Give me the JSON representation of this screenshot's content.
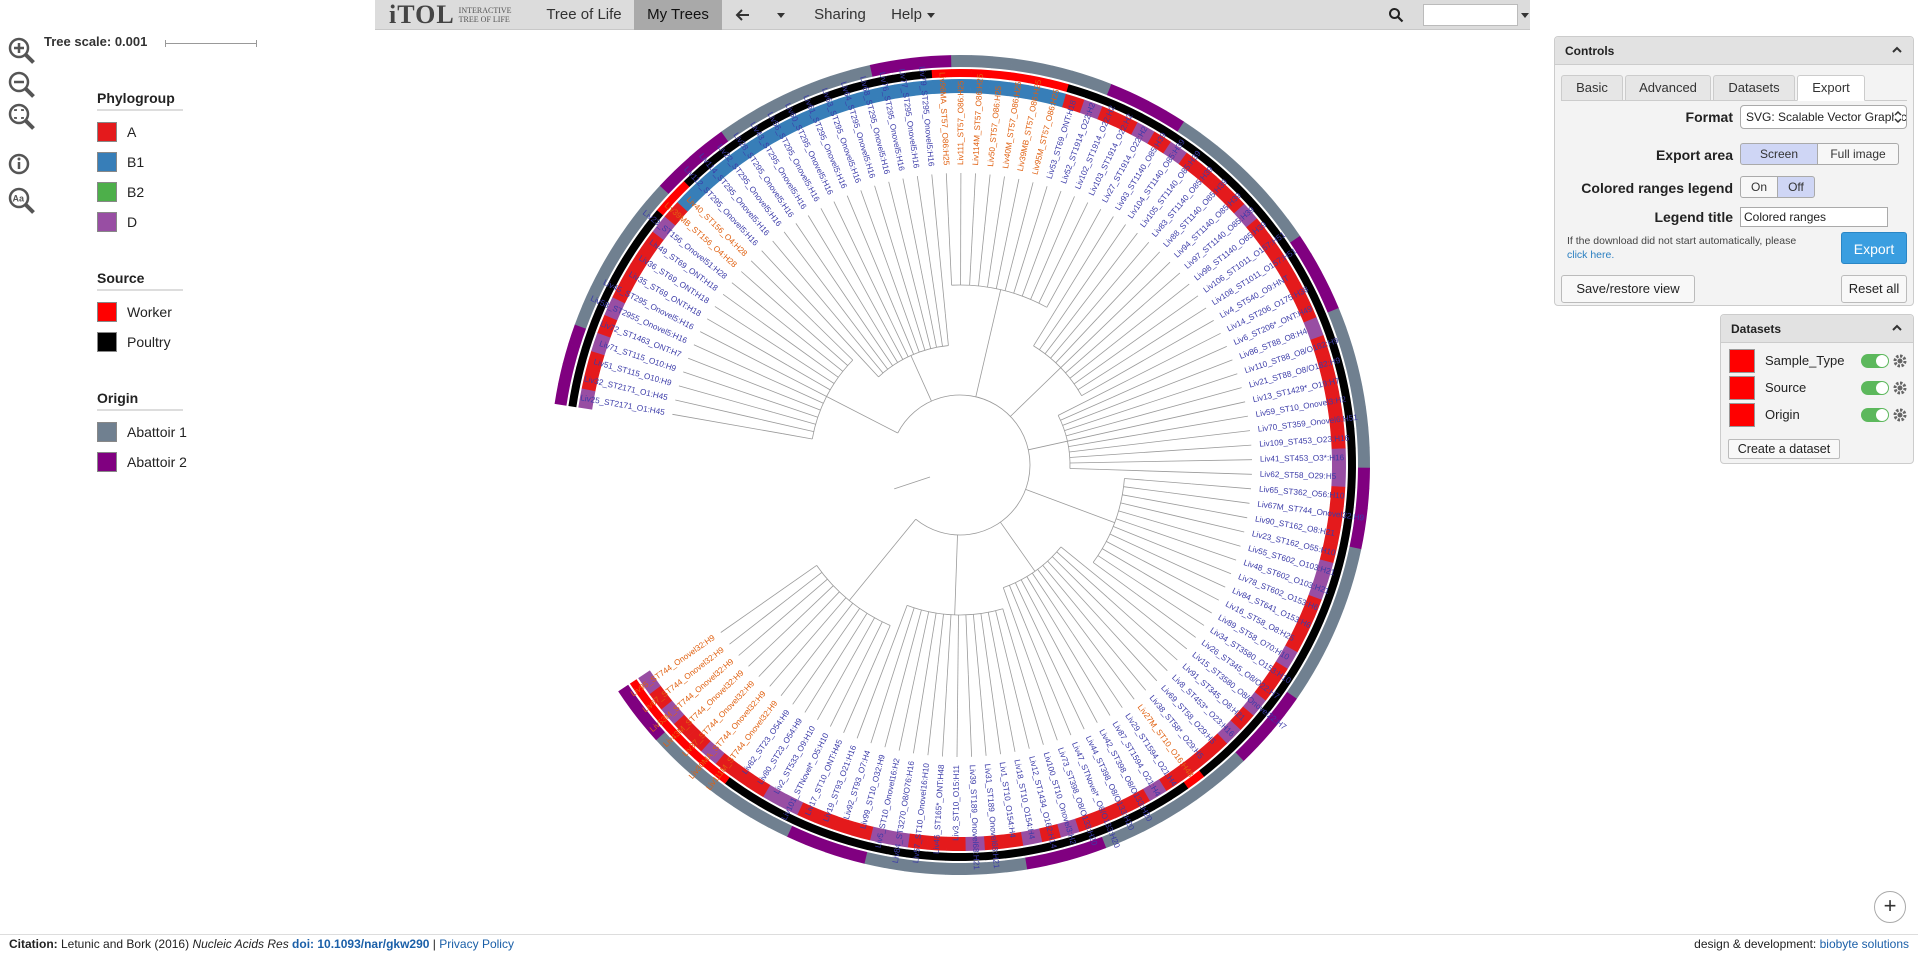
{
  "nav": {
    "logo_main": "iTOL",
    "logo_sub_1": "Interactive",
    "logo_sub_2": "Tree Of Life",
    "tree_of_life": "Tree of Life",
    "my_trees": "My Trees",
    "sharing": "Sharing",
    "help": "Help",
    "icons": [
      "arrow-left-icon",
      "search-icon"
    ]
  },
  "tree_scale": "Tree scale: 0.001",
  "legends": {
    "phylogroup": {
      "title": "Phylogroup",
      "items": [
        {
          "label": "A",
          "color": "#e41a1c"
        },
        {
          "label": "B1",
          "color": "#377eb8"
        },
        {
          "label": "B2",
          "color": "#4daf4a"
        },
        {
          "label": "D",
          "color": "#984ea3"
        }
      ]
    },
    "source": {
      "title": "Source",
      "items": [
        {
          "label": "Worker",
          "color": "#ff0000"
        },
        {
          "label": "Poultry",
          "color": "#000000"
        }
      ]
    },
    "origin": {
      "title": "Origin",
      "items": [
        {
          "label": "Abattoir 1",
          "color": "#708090"
        },
        {
          "label": "Abattoir 2",
          "color": "#800080"
        }
      ]
    }
  },
  "tree": {
    "leaf_color_normal": "#3b3ba8",
    "leaf_color_worker": "#e06010",
    "leaves": [
      {
        "label": "Liv25_ST2171_O1:H45",
        "c": 0
      },
      {
        "label": "Liv32_ST2171_O1:H45",
        "c": 0
      },
      {
        "label": "Liv51_ST115_O10:H9",
        "c": 0
      },
      {
        "label": "Liv71_ST115_O10:H9",
        "c": 0
      },
      {
        "label": "Liv72_ST1463_ONT:H7",
        "c": 0
      },
      {
        "label": "Liv58_ST2955_Onovel5:H16",
        "c": 0
      },
      {
        "label": "Liv45_ST295_Onovel5:H16",
        "c": 0
      },
      {
        "label": "Liv35_ST69_ONT:H18",
        "c": 0
      },
      {
        "label": "Liv36_ST69_ONT:H18",
        "c": 0
      },
      {
        "label": "Liv49_ST69_ONT:H18",
        "c": 0
      },
      {
        "label": "Liv23_ST156_Onovel51:H28",
        "c": 0
      },
      {
        "label": "Liv39MB_ST156_O4:H28",
        "c": 1
      },
      {
        "label": "Liv40_ST156_O4:H28",
        "c": 1
      },
      {
        "label": "Liv112_ST295_Onovel5:H16",
        "c": 0
      },
      {
        "label": "Liv114_ST295_Onovel5:H16",
        "c": 0
      },
      {
        "label": "Liv22_ST295_Onovel5:H16",
        "c": 0
      },
      {
        "label": "Liv28_ST295_Onovel5:H16",
        "c": 0
      },
      {
        "label": "Liv43_ST295_Onovel5:H16",
        "c": 0
      },
      {
        "label": "Liv56_ST295_Onovel5:H16",
        "c": 0
      },
      {
        "label": "Liv60_ST295_Onovel5:H16",
        "c": 0
      },
      {
        "label": "Liv61_ST295_Onovel5:H16",
        "c": 0
      },
      {
        "label": "Liv63_ST295_Onovel5:H16",
        "c": 0
      },
      {
        "label": "Liv64_ST295_Onovel5:H16",
        "c": 0
      },
      {
        "label": "Liv68_ST295_Onovel5:H16",
        "c": 0
      },
      {
        "label": "Liv76_ST295_Onovel5:H16",
        "c": 0
      },
      {
        "label": "Liv77_ST295_Onovel5:H16",
        "c": 0
      },
      {
        "label": "Liv79_ST295_Onovel5:H16",
        "c": 0
      },
      {
        "label": "Liv96MA_ST57_O86:H25",
        "c": 1
      },
      {
        "label": "Liv111_ST57_O86:H25",
        "c": 1
      },
      {
        "label": "Liv114M_ST57_O86:H25",
        "c": 1
      },
      {
        "label": "Liv50_ST57_O86:H25",
        "c": 1
      },
      {
        "label": "Liv40M_ST57_O86:H25",
        "c": 1
      },
      {
        "label": "Liv39MB_ST57_O86:H25",
        "c": 1
      },
      {
        "label": "Liv95M_ST57_O86:H25",
        "c": 1
      },
      {
        "label": "Liv53_ST69_ONT:H18",
        "c": 0
      },
      {
        "label": "Liv52_ST1914_O22:H2",
        "c": 0
      },
      {
        "label": "Liv102_ST1914_O22:H2",
        "c": 0
      },
      {
        "label": "Liv103_ST1914_O22:H2",
        "c": 0
      },
      {
        "label": "Liv27_ST1914_O22:H2",
        "c": 0
      },
      {
        "label": "Liv93_ST1140_O85:H39",
        "c": 0
      },
      {
        "label": "Liv104_ST1140_O85:H39",
        "c": 0
      },
      {
        "label": "Liv105_ST1140_O85:H39",
        "c": 0
      },
      {
        "label": "Liv83_ST1140_O85:H39",
        "c": 0
      },
      {
        "label": "Liv88_ST1140_O85:H39",
        "c": 0
      },
      {
        "label": "Liv94_ST1140_O85:H39",
        "c": 0
      },
      {
        "label": "Liv97_ST1140_O85:H39",
        "c": 0
      },
      {
        "label": "Liv98_ST1140_O85:H39",
        "c": 0
      },
      {
        "label": "Liv106_ST1011_O157:H51",
        "c": 0
      },
      {
        "label": "Liv108_ST1011_O157:H51",
        "c": 0
      },
      {
        "label": "Liv4_ST540_O9:HNT",
        "c": 0
      },
      {
        "label": "Liv14_ST206_O175:H38",
        "c": 0
      },
      {
        "label": "Liv6_ST206*_ONT:H49",
        "c": 0
      },
      {
        "label": "Liv86_ST88_O8:H4",
        "c": 0
      },
      {
        "label": "Liv110_ST88_O8/O182:H9",
        "c": 0
      },
      {
        "label": "Liv21_ST88_O8/O182:H9",
        "c": 0
      },
      {
        "label": "Liv13_ST1429*_O19:H7",
        "c": 0
      },
      {
        "label": "Liv59_ST10_Onovel3:H2",
        "c": 0
      },
      {
        "label": "Liv70_ST359_Onovel6:H51",
        "c": 0
      },
      {
        "label": "Liv109_ST453_O23:H16",
        "c": 0
      },
      {
        "label": "Liv41_ST453_O3*:H16",
        "c": 0
      },
      {
        "label": "Liv62_ST58_O29:H5",
        "c": 0
      },
      {
        "label": "Liv65_ST362_O56:H10",
        "c": 0
      },
      {
        "label": "Liv67M_ST744_Onovel32:H9",
        "c": 0
      },
      {
        "label": "Liv90_ST162_O8:H21",
        "c": 0
      },
      {
        "label": "Liv23_ST162_O55:H10",
        "c": 0
      },
      {
        "label": "Liv55_ST602_O103:H21",
        "c": 0
      },
      {
        "label": "Liv48_ST602_O103:H21",
        "c": 0
      },
      {
        "label": "Liv78_ST602_O153:H6",
        "c": 0
      },
      {
        "label": "Liv84_ST641_O153:H6",
        "c": 0
      },
      {
        "label": "Liv16_ST58_O8:H25",
        "c": 0
      },
      {
        "label": "Liv89_ST58_O70:H10",
        "c": 0
      },
      {
        "label": "Liv34_ST3580_O153:H10",
        "c": 0
      },
      {
        "label": "Liv26_ST345_O8/O22:H7",
        "c": 0
      },
      {
        "label": "Liv15_ST3580_O8/Onovel22:H7",
        "c": 0
      },
      {
        "label": "Liv91_ST345_O8:H21",
        "c": 0
      },
      {
        "label": "Liv8_ST453*_O23:H16",
        "c": 0
      },
      {
        "label": "Liv69_ST58_O29:H5",
        "c": 0
      },
      {
        "label": "Liv38_ST58*_O29:H5",
        "c": 0
      },
      {
        "label": "Liv27M_ST10_O16:H48",
        "c": 1
      },
      {
        "label": "Liv29_ST1594_O21:H4",
        "c": 0
      },
      {
        "label": "Liv87_ST1594_O21:H4",
        "c": 0
      },
      {
        "label": "Liv42_ST398_O8/O133:H20",
        "c": 0
      },
      {
        "label": "Liv44_ST398_O8/O133:H20",
        "c": 0
      },
      {
        "label": "Liv47_STNovel*_O8/O133:H20",
        "c": 0
      },
      {
        "label": "Liv73_ST398_O8/O133:H20",
        "c": 0
      },
      {
        "label": "Liv100_ST10_Onovel3:H2",
        "c": 0
      },
      {
        "label": "Liv12_ST1434_O162:H14",
        "c": 0
      },
      {
        "label": "Liv18_ST10_O154:H4",
        "c": 0
      },
      {
        "label": "Liv1_ST10_O154:H4",
        "c": 0
      },
      {
        "label": "Liv31_ST189_Onovel68:H21",
        "c": 0
      },
      {
        "label": "Liv39_ST189_Onovel68:H21",
        "c": 0
      },
      {
        "label": "Liv3_ST10_O15:H11",
        "c": 0
      },
      {
        "label": "Liv46_ST165*_ONT:H48",
        "c": 0
      },
      {
        "label": "Liv57_ST10_Onovel16:H10",
        "c": 0
      },
      {
        "label": "Liv84_ST3270_O8/O76:H16",
        "c": 0
      },
      {
        "label": "Liv5_ST10_Onovel16:H2",
        "c": 0
      },
      {
        "label": "Liv99_ST10_O32:H9",
        "c": 0
      },
      {
        "label": "Liv92_ST93_O7:H4",
        "c": 0
      },
      {
        "label": "Liv19_ST93_O21:H16",
        "c": 0
      },
      {
        "label": "Liv17_ST10_ONT:H45",
        "c": 0
      },
      {
        "label": "Liv101_STNovel*_O5:H10",
        "c": 0
      },
      {
        "label": "Liv2_ST533_O9:H10",
        "c": 0
      },
      {
        "label": "Liv80_ST23_O54:H9",
        "c": 0
      },
      {
        "label": "Liv82_ST23_O54:H9",
        "c": 0
      },
      {
        "label": "Liv111M_ST744_Onovel32:H9",
        "c": 1
      },
      {
        "label": "Liv30MA_ST744_Onovel32:H9",
        "c": 1
      },
      {
        "label": "Liv37_ST744_Onovel32:H9",
        "c": 1
      },
      {
        "label": "Liv43M_ST744_Onovel32:H9",
        "c": 1
      },
      {
        "label": "Liv53M_ST744_Onovel32:H9",
        "c": 1
      },
      {
        "label": "Liv67_ST744_Onovel32:H9",
        "c": 1
      },
      {
        "label": "Liv95_ST744_Onovel32:H9",
        "c": 1
      }
    ]
  },
  "controls": {
    "title": "Controls",
    "tabs": [
      "Basic",
      "Advanced",
      "Datasets",
      "Export"
    ],
    "active_tab": "Export",
    "format_label": "Format",
    "format_value": "SVG: Scalable Vector Graphics",
    "export_area_label": "Export area",
    "export_area_screen": "Screen",
    "export_area_full": "Full image",
    "colored_ranges_label": "Colored ranges legend",
    "on": "On",
    "off": "Off",
    "legend_title_label": "Legend title",
    "legend_title_value": "Colored ranges",
    "note_1": "If the download did not start automatically, please",
    "note_link": "click here.",
    "export_button": "Export",
    "save_restore": "Save/restore view",
    "reset_all": "Reset all"
  },
  "datasets": {
    "title": "Datasets",
    "items": [
      {
        "name": "Sample_Type",
        "color": "#ff0000"
      },
      {
        "name": "Source",
        "color": "#ff0000"
      },
      {
        "name": "Origin",
        "color": "#ff0000"
      }
    ],
    "create": "Create a dataset"
  },
  "footer": {
    "citation_label": "Citation:",
    "citation_text": "Letunic and Bork (2016)",
    "journal": "Nucleic Acids Res",
    "doi": "doi: 10.1093/nar/gkw290",
    "sep": "|",
    "privacy": "Privacy Policy",
    "design_label": "design & development:",
    "design_link": "biobyte solutions"
  },
  "plus": "+"
}
